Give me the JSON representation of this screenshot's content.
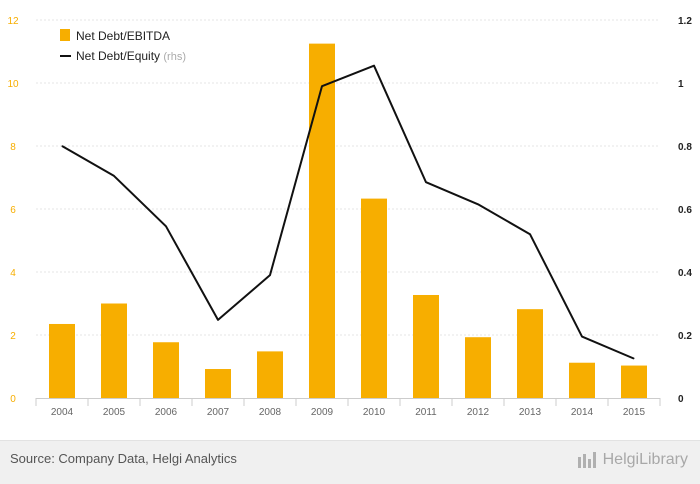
{
  "chart_data": {
    "type": "bar+line",
    "categories": [
      "2004",
      "2005",
      "2006",
      "2007",
      "2008",
      "2009",
      "2010",
      "2011",
      "2012",
      "2013",
      "2014",
      "2015"
    ],
    "series": [
      {
        "name": "Net Debt/EBITDA",
        "type": "bar",
        "axis": "left",
        "color": "#f7ae00",
        "values": [
          2.35,
          3.0,
          1.77,
          0.92,
          1.48,
          11.25,
          6.33,
          3.27,
          1.93,
          2.82,
          1.12,
          1.03
        ]
      },
      {
        "name": "Net Debt/Equity",
        "type": "line",
        "axis": "right",
        "color": "#111111",
        "values": [
          0.8,
          0.705,
          0.545,
          0.248,
          0.39,
          0.99,
          1.055,
          0.685,
          0.615,
          0.52,
          0.195,
          0.125
        ]
      }
    ],
    "left_axis": {
      "ylim": [
        0,
        12
      ],
      "ticks": [
        "0",
        "2",
        "4",
        "6",
        "8",
        "10",
        "12"
      ],
      "color": "#f7ae00"
    },
    "right_axis": {
      "ylim": [
        0,
        1.2
      ],
      "ticks": [
        "0",
        "0.2",
        "0.4",
        "0.6",
        "0.8",
        "1",
        "1.2"
      ]
    },
    "legend": {
      "placement": "top-left",
      "items": [
        {
          "label": "Net Debt/EBITDA",
          "suffix": ""
        },
        {
          "label": "Net Debt/Equity",
          "suffix": "(rhs)"
        }
      ]
    },
    "grid": "horizontal"
  },
  "footer": {
    "source": "Source: Company Data, Helgi Analytics",
    "brand": "HelgiLibrary",
    "brand_icon": "helgi-library-logo-icon"
  }
}
